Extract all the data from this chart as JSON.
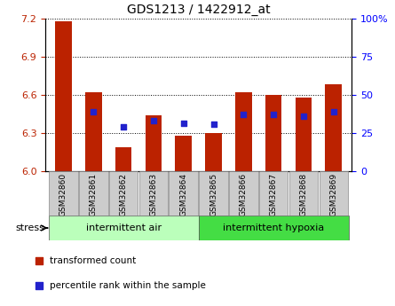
{
  "title": "GDS1213 / 1422912_at",
  "samples": [
    "GSM32860",
    "GSM32861",
    "GSM32862",
    "GSM32863",
    "GSM32864",
    "GSM32865",
    "GSM32866",
    "GSM32867",
    "GSM32868",
    "GSM32869"
  ],
  "red_values": [
    7.18,
    6.62,
    6.19,
    6.44,
    6.28,
    6.3,
    6.62,
    6.6,
    6.58,
    6.68
  ],
  "blue_values": [
    null,
    6.47,
    6.35,
    6.4,
    6.38,
    6.37,
    6.45,
    6.45,
    6.43,
    6.47
  ],
  "ylim": [
    6.0,
    7.2
  ],
  "yticks": [
    6.0,
    6.3,
    6.6,
    6.9,
    7.2
  ],
  "right_ytick_pcts": [
    0,
    25,
    50,
    75,
    100
  ],
  "right_ytick_labels": [
    "0",
    "25",
    "50",
    "75",
    "100%"
  ],
  "bar_width": 0.55,
  "group1_label": "intermittent air",
  "group1_color": "#bbffbb",
  "group2_label": "intermittent hypoxia",
  "group2_color": "#44dd44",
  "bar_color": "#bb2200",
  "blue_color": "#2222cc",
  "baseline": 6.0,
  "tick_label_bg": "#cccccc",
  "legend_red_label": "transformed count",
  "legend_blue_label": "percentile rank within the sample",
  "stress_label": "stress"
}
